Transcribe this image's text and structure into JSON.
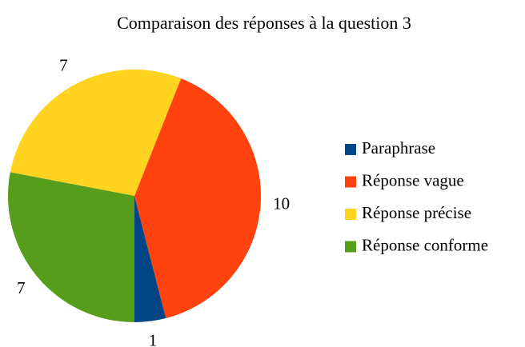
{
  "chart_data": {
    "type": "pie",
    "title": "Comparaison des réponses à la question 3",
    "categories": [
      "Paraphrase",
      "Réponse vague",
      "Réponse précise",
      "Réponse conforme"
    ],
    "values": [
      1,
      10,
      7,
      7
    ],
    "colors": [
      "#004586",
      "#ff420e",
      "#ffd320",
      "#579d1c"
    ],
    "legend": "right"
  }
}
